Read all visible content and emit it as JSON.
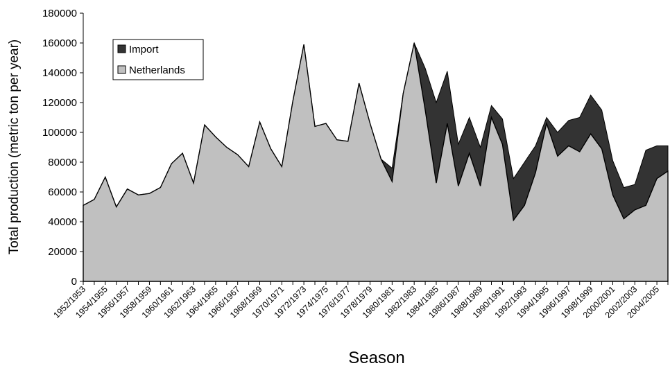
{
  "chart_data": {
    "type": "area",
    "stacked": true,
    "xlabel": "Season",
    "ylabel": "Total production (metric ton per year)",
    "ylim": [
      0,
      180000
    ],
    "yticks": [
      0,
      20000,
      40000,
      60000,
      80000,
      100000,
      120000,
      140000,
      160000,
      180000
    ],
    "grid": false,
    "legend_position": "top-left",
    "x": [
      "1952/1953",
      "1953/1954",
      "1954/1955",
      "1955/1956",
      "1956/1957",
      "1957/1958",
      "1958/1959",
      "1959/1960",
      "1960/1961",
      "1961/1962",
      "1962/1963",
      "1963/1964",
      "1964/1965",
      "1965/1966",
      "1966/1967",
      "1967/1968",
      "1968/1969",
      "1969/1970",
      "1970/1971",
      "1971/1972",
      "1972/1973",
      "1973/1974",
      "1974/1975",
      "1975/1976",
      "1976/1977",
      "1977/1978",
      "1978/1979",
      "1979/1980",
      "1980/1981",
      "1981/1982",
      "1982/1983",
      "1983/1984",
      "1984/1985",
      "1985/1986",
      "1986/1987",
      "1987/1988",
      "1988/1989",
      "1989/1990",
      "1990/1991",
      "1991/1992",
      "1992/1993",
      "1993/1994",
      "1994/1995",
      "1995/1996",
      "1996/1997",
      "1997/1998",
      "1998/1999",
      "1999/2000",
      "2000/2001",
      "2001/2002",
      "2002/2003",
      "2003/2004",
      "2004/2005",
      "2005/2006"
    ],
    "x_tick_labels": [
      "1952/1953",
      "1954/1955",
      "1956/1957",
      "1958/1959",
      "1960/1961",
      "1962/1963",
      "1964/1965",
      "1966/1967",
      "1968/1969",
      "1970/1971",
      "1972/1973",
      "1974/1975",
      "1976/1977",
      "1978/1979",
      "1980/1981",
      "1982/1983",
      "1984/1985",
      "1986/1987",
      "1988/1989",
      "1990/1991",
      "1992/1993",
      "1994/1995",
      "1996/1997",
      "1998/1999",
      "2000/2001",
      "2002/2003",
      "2004/2005"
    ],
    "series": [
      {
        "name": "Netherlands",
        "color": "#c0c0c0",
        "values": [
          51000,
          55000,
          70000,
          50000,
          62000,
          58000,
          59000,
          63000,
          79000,
          86000,
          66000,
          105000,
          97000,
          90000,
          85000,
          77000,
          107000,
          89000,
          77000,
          121000,
          159000,
          104000,
          106000,
          95000,
          94000,
          133000,
          106000,
          82000,
          67000,
          126000,
          160000,
          115000,
          66000,
          106000,
          64000,
          86000,
          64000,
          110000,
          92000,
          41000,
          51000,
          73000,
          106000,
          84000,
          91000,
          87000,
          99000,
          89000,
          58000,
          42000,
          48000,
          51000,
          69000,
          74000
        ]
      },
      {
        "name": "Import",
        "color": "#333333",
        "values": [
          0,
          0,
          0,
          0,
          0,
          0,
          0,
          0,
          0,
          0,
          0,
          0,
          0,
          0,
          0,
          0,
          0,
          0,
          0,
          0,
          0,
          0,
          0,
          0,
          0,
          0,
          0,
          0,
          9000,
          0,
          0,
          28000,
          54000,
          35000,
          28000,
          24000,
          26000,
          8000,
          17000,
          28000,
          29000,
          18000,
          4000,
          16000,
          17000,
          23000,
          26000,
          26000,
          23000,
          21000,
          17000,
          37000,
          22000,
          17000
        ]
      }
    ]
  }
}
